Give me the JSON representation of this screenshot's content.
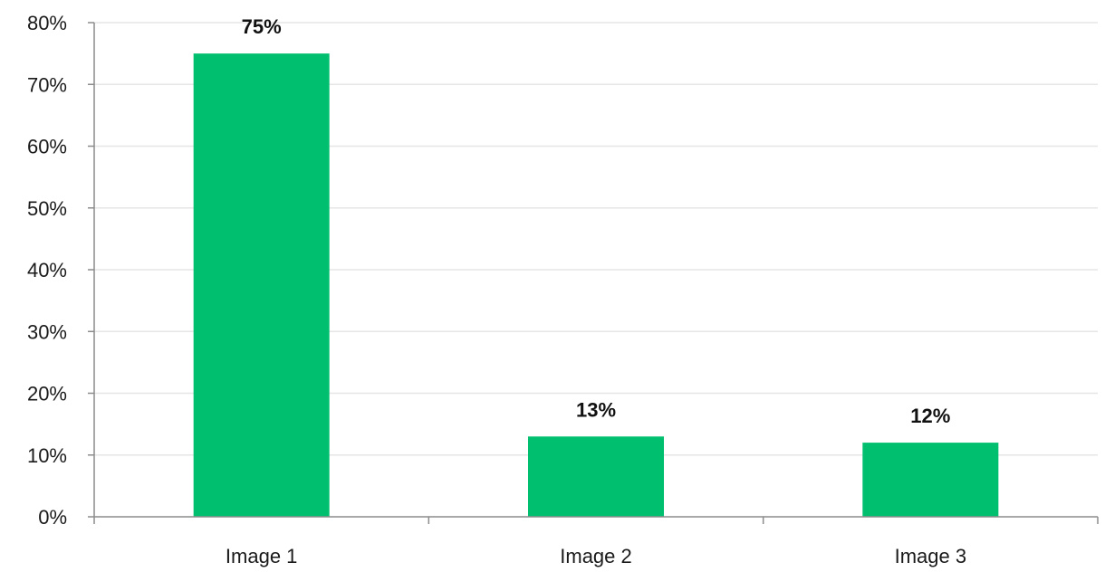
{
  "chart_data": {
    "type": "bar",
    "title": "",
    "xlabel": "",
    "ylabel": "",
    "categories": [
      "Image 1",
      "Image 2",
      "Image 3"
    ],
    "values": [
      75,
      13,
      12
    ],
    "data_labels": [
      "75%",
      "13%",
      "12%"
    ],
    "ylim": [
      0,
      80
    ],
    "yticks": [
      0,
      10,
      20,
      30,
      40,
      50,
      60,
      70,
      80
    ],
    "ytick_labels": [
      "0%",
      "10%",
      "20%",
      "30%",
      "40%",
      "50%",
      "60%",
      "70%",
      "80%"
    ],
    "grid": true,
    "legend": "none",
    "colors": {
      "bar": "#00BF6F",
      "grid": "#e6e6e6",
      "axis": "#8c8c8c"
    }
  }
}
